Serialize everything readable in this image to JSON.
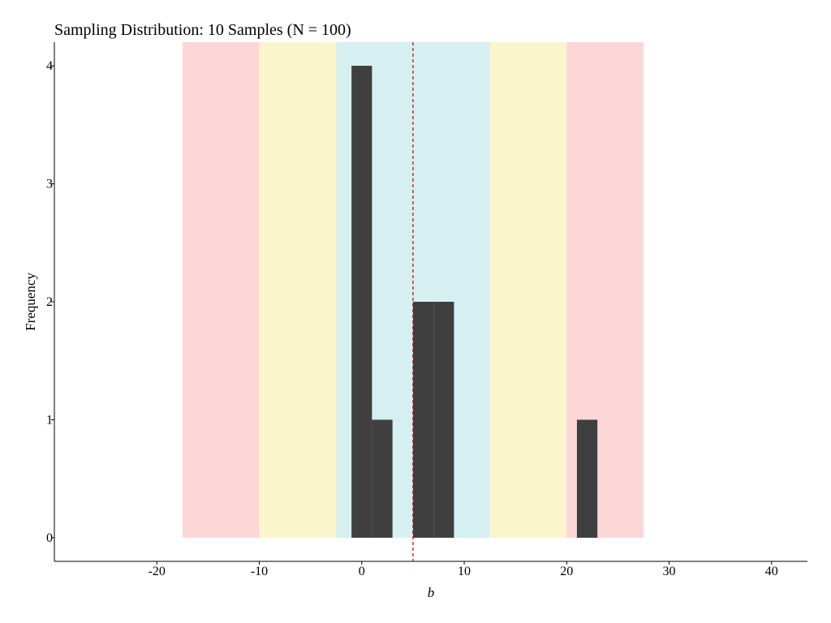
{
  "chart_data": {
    "type": "bar",
    "title": "Sampling Distribution: 10 Samples (N = 100)",
    "xlabel": "b",
    "ylabel": "Frequency",
    "xlim": [
      -30,
      43.5
    ],
    "ylim": [
      -0.2,
      4.2
    ],
    "x_ticks": [
      -20,
      -10,
      0,
      10,
      20,
      30,
      40
    ],
    "y_ticks": [
      0,
      1,
      2,
      3,
      4
    ],
    "grid": false,
    "legend": "none",
    "bars": [
      {
        "x0": -1,
        "x1": 1,
        "count": 4
      },
      {
        "x0": 1,
        "x1": 3,
        "count": 1
      },
      {
        "x0": 5,
        "x1": 7,
        "count": 2
      },
      {
        "x0": 7,
        "x1": 9,
        "count": 2
      },
      {
        "x0": 21,
        "x1": 23,
        "count": 1
      }
    ],
    "bar_color": "#3f3f3f",
    "bands": [
      {
        "x0": -17.5,
        "x1": -10,
        "color": "#fdd7d8"
      },
      {
        "x0": -10,
        "x1": -2.5,
        "color": "#fbf5cc"
      },
      {
        "x0": -2.5,
        "x1": 12.5,
        "color": "#d6f0f1"
      },
      {
        "x0": 12.5,
        "x1": 20,
        "color": "#fbf5cc"
      },
      {
        "x0": 20,
        "x1": 27.5,
        "color": "#fdd7d8"
      }
    ],
    "reference_line": {
      "x": 5,
      "color": "#c00000",
      "style": "dashed"
    }
  }
}
